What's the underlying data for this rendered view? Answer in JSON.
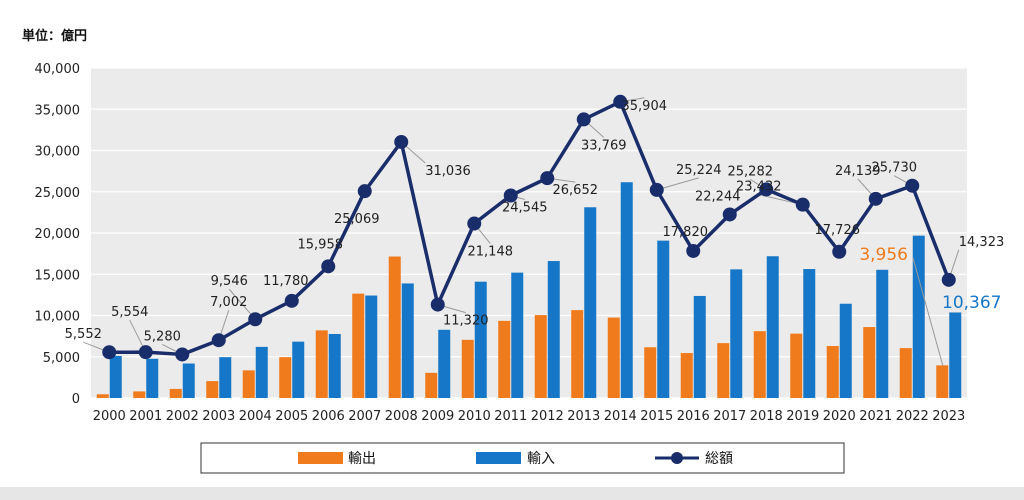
{
  "unit_label": "単位：億円",
  "chart_data": {
    "type": "bar",
    "categories": [
      "2000",
      "2001",
      "2002",
      "2003",
      "2004",
      "2005",
      "2006",
      "2007",
      "2008",
      "2009",
      "2010",
      "2011",
      "2012",
      "2013",
      "2014",
      "2015",
      "2016",
      "2017",
      "2018",
      "2019",
      "2020",
      "2021",
      "2022",
      "2023"
    ],
    "ylim": [
      0,
      40000
    ],
    "yticks": [
      "0",
      "5,000",
      "10,000",
      "15,000",
      "20,000",
      "25,000",
      "30,000",
      "35,000",
      "40,000"
    ],
    "grid": true,
    "legend_position": "bottom",
    "series": [
      {
        "name": "輸出",
        "type": "bar",
        "color": "#f07b1d",
        "values": [
          450,
          800,
          1100,
          2050,
          3350,
          4950,
          8200,
          12650,
          17150,
          3050,
          7050,
          9350,
          10050,
          10650,
          9750,
          6150,
          5450,
          6650,
          8100,
          7800,
          6300,
          8600,
          6050,
          3956
        ]
      },
      {
        "name": "輸入",
        "type": "bar",
        "color": "#1677c8",
        "values": [
          5100,
          4750,
          4180,
          4950,
          6196,
          6830,
          7758,
          12419,
          13886,
          8270,
          14098,
          15195,
          16602,
          23119,
          26154,
          19074,
          12370,
          15594,
          17182,
          15632,
          11426,
          15539,
          19680,
          10367
        ]
      },
      {
        "name": "総額",
        "type": "line",
        "color": "#1a2d6b",
        "values": [
          5552,
          5554,
          5280,
          7002,
          9546,
          11780,
          15958,
          25069,
          31036,
          11320,
          21148,
          24545,
          26652,
          33769,
          35904,
          25224,
          17820,
          22244,
          25282,
          23432,
          17726,
          24139,
          25730,
          14323
        ]
      }
    ],
    "total_labels": [
      "5,552",
      "5,554",
      "5,280",
      "7,002",
      "9,546",
      "11,780",
      "15,958",
      "25,069",
      "31,036",
      "11,320",
      "21,148",
      "24,545",
      "26,652",
      "33,769",
      "35,904",
      "25,224",
      "17,820",
      "22,244",
      "25,282",
      "23,432",
      "17,726",
      "24,139",
      "25,730",
      "14,323"
    ],
    "export_2023_label": "3,956",
    "import_2023_label": "10,367"
  }
}
